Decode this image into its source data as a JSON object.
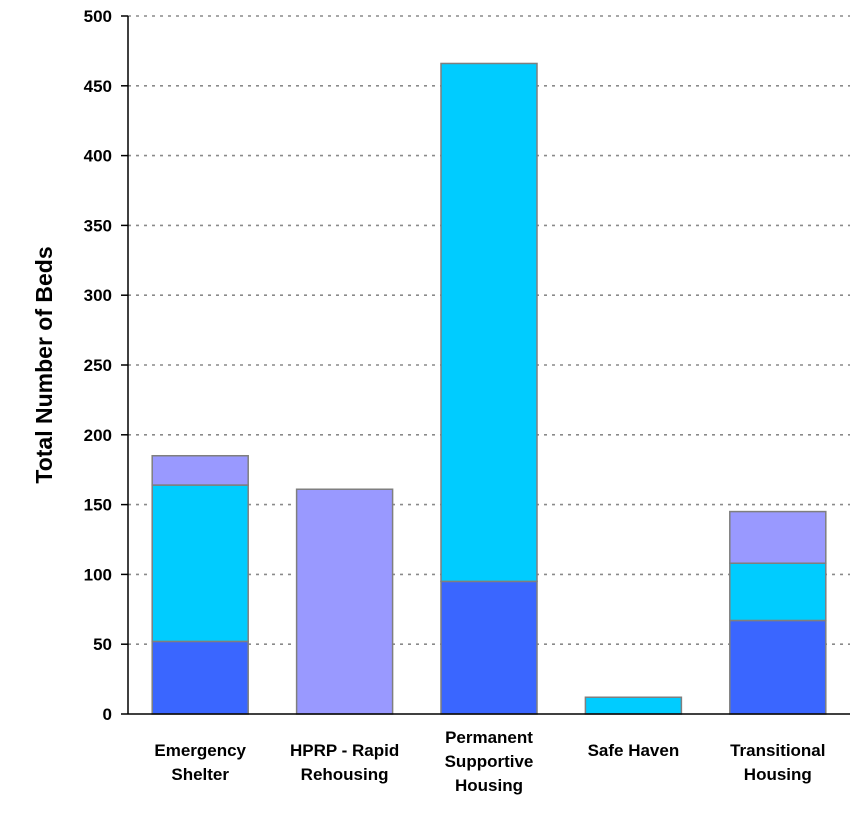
{
  "chart_data": {
    "type": "bar",
    "stacked": true,
    "title": "",
    "xlabel": "",
    "ylabel": "Total Number of Beds",
    "ylim": [
      0,
      500
    ],
    "yticks": [
      0,
      50,
      100,
      150,
      200,
      250,
      300,
      350,
      400,
      450,
      500
    ],
    "grid": true,
    "categories": [
      [
        "Emergency",
        "Shelter"
      ],
      [
        "HPRP - Rapid",
        "Rehousing"
      ],
      [
        "Permanent",
        "Supportive",
        "Housing"
      ],
      [
        "Safe Haven"
      ],
      [
        "Transitional",
        "Housing"
      ]
    ],
    "series": [
      {
        "color": "#3a66ff",
        "values": [
          52,
          0,
          95,
          0,
          67
        ]
      },
      {
        "color": "#00ccff",
        "values": [
          112,
          0,
          371,
          12,
          41
        ]
      },
      {
        "color": "#9999ff",
        "values": [
          21,
          161,
          0,
          0,
          37
        ]
      }
    ]
  }
}
